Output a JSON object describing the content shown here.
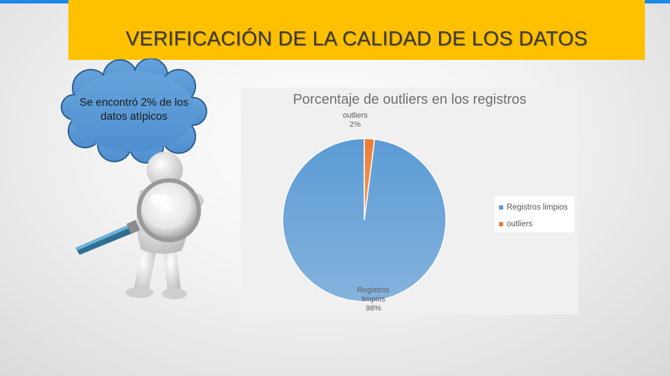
{
  "slide": {
    "title": "VERIFICACIÓN DE LA CALIDAD DE LOS DATOS",
    "accent_color": "#1e88e5",
    "title_bar_color": "#ffc000"
  },
  "callout": {
    "line1": "Se encontró 2% de los",
    "line2": "datos atípicos",
    "fill_color": "#5b9bd5"
  },
  "illustration": {
    "icon": "person-with-magnifying-glass-icon"
  },
  "chart_data": {
    "type": "pie",
    "title": "Porcentaje de outliers en los registros",
    "categories": [
      "Registros limpios",
      "outliers"
    ],
    "values": [
      98,
      2
    ],
    "colors": [
      "#5b9bd5",
      "#ed7d31"
    ],
    "data_labels": [
      {
        "name_line1": "Registros",
        "name_line2": "limpios",
        "percent": "98%"
      },
      {
        "name_line1": "outliers",
        "name_line2": "",
        "percent": "2%"
      }
    ],
    "legend": {
      "position": "right",
      "items": [
        "Registros limpios",
        "outliers"
      ]
    }
  }
}
